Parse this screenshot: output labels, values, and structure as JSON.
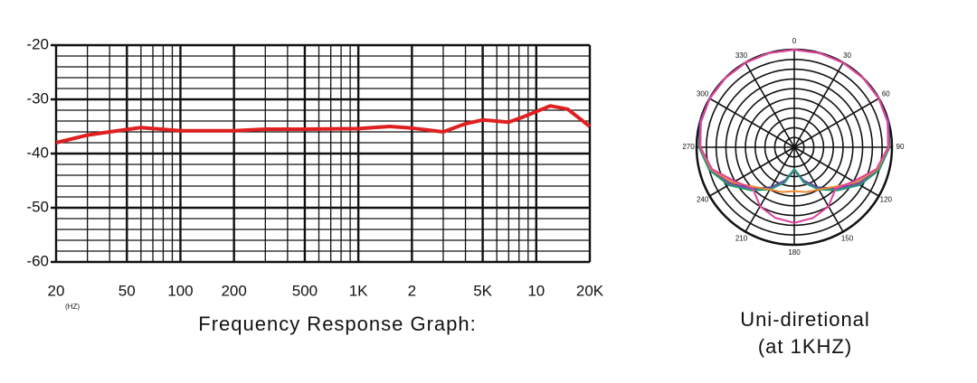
{
  "chart_data": [
    {
      "type": "line",
      "title": "Frequency Response Graph:",
      "x_unit": "(HZ)",
      "xscale": "log",
      "x": [
        20,
        30,
        40,
        60,
        100,
        200,
        300,
        500,
        1000,
        1500,
        2000,
        3000,
        4000,
        5000,
        7000,
        8500,
        12000,
        15000,
        20000
      ],
      "series": [
        {
          "color": "#e02020",
          "values": [
            -38,
            -36.6,
            -36,
            -35.2,
            -35.8,
            -35.8,
            -35.5,
            -35.5,
            -35.4,
            -35,
            -35.3,
            -36,
            -34.5,
            -33.8,
            -34.2,
            -33.2,
            -31.2,
            -31.8,
            -35
          ]
        }
      ],
      "xlim": [
        20,
        20000
      ],
      "xticks": [
        20,
        50,
        100,
        200,
        500,
        {
          "value": 1000,
          "label": "1K"
        },
        {
          "value": 2000,
          "label": "2"
        },
        {
          "value": 5000,
          "label": "5K"
        },
        {
          "value": 10000,
          "label": "10"
        },
        {
          "value": 20000,
          "label": "20K"
        }
      ],
      "minor_xticks": [
        30,
        40,
        60,
        70,
        80,
        90,
        300,
        400,
        600,
        700,
        800,
        900,
        3000,
        4000,
        6000,
        7000,
        8000,
        9000
      ],
      "ylim": [
        -60,
        -20
      ],
      "yticks": [
        -20,
        -30,
        -40,
        -50,
        -60
      ],
      "minor_yticks": [
        -22,
        -24,
        -26,
        -28,
        -32,
        -34,
        -36,
        -38,
        -42,
        -44,
        -46,
        -48,
        -52,
        -54,
        -56,
        -58
      ],
      "grid": true
    },
    {
      "type": "polar",
      "title": "Uni-diretional",
      "subtitle": "(at 1KHZ)",
      "theta": [
        0,
        15,
        30,
        45,
        60,
        75,
        90,
        105,
        120,
        135,
        150,
        165,
        180,
        195,
        210,
        225,
        240,
        255,
        270,
        285,
        300,
        315,
        330,
        345
      ],
      "thetaticks": [
        0,
        30,
        60,
        90,
        120,
        150,
        180,
        210,
        240,
        270,
        300,
        330
      ],
      "rlim": [
        0,
        20
      ],
      "rticks": [
        2,
        4,
        6,
        8,
        10,
        12,
        14,
        16,
        18,
        20
      ],
      "series": [
        {
          "color": "#3a3a9a",
          "values": [
            20,
            20,
            20,
            20,
            20,
            20,
            19.5,
            18,
            15,
            12,
            9.5,
            7,
            4.5,
            7,
            9.5,
            12,
            15,
            18,
            19.5,
            20,
            20,
            20,
            20,
            20
          ]
        },
        {
          "color": "#8a4fb0",
          "values": [
            20,
            20,
            20,
            20,
            20,
            19.8,
            19.3,
            17.8,
            15.2,
            12.2,
            9.8,
            7.2,
            4.8,
            7.2,
            9.8,
            12.2,
            15.2,
            17.8,
            19.3,
            19.8,
            20,
            20,
            20,
            20
          ]
        },
        {
          "color": "#1e9a70",
          "values": [
            20,
            20,
            20,
            20,
            20,
            19.8,
            19.4,
            18,
            15.5,
            12.5,
            10,
            7.5,
            4.5,
            7.5,
            10,
            12.5,
            15.5,
            18,
            19.4,
            19.8,
            20,
            20,
            20,
            20
          ]
        },
        {
          "color": "#f08a30",
          "values": [
            20,
            20,
            20,
            20,
            20,
            19.8,
            19.3,
            17.6,
            14.5,
            11.5,
            10,
            9.5,
            9,
            9.5,
            10,
            11.5,
            14.5,
            17.6,
            19.3,
            19.8,
            20,
            20,
            20,
            20
          ]
        },
        {
          "color": "#e040a0",
          "values": [
            20,
            20,
            20,
            20,
            20,
            19.8,
            19.2,
            17.4,
            14,
            12,
            14,
            15,
            15.5,
            15,
            14,
            12,
            14,
            17.4,
            19.2,
            19.8,
            20,
            20,
            20,
            20
          ]
        }
      ]
    }
  ]
}
